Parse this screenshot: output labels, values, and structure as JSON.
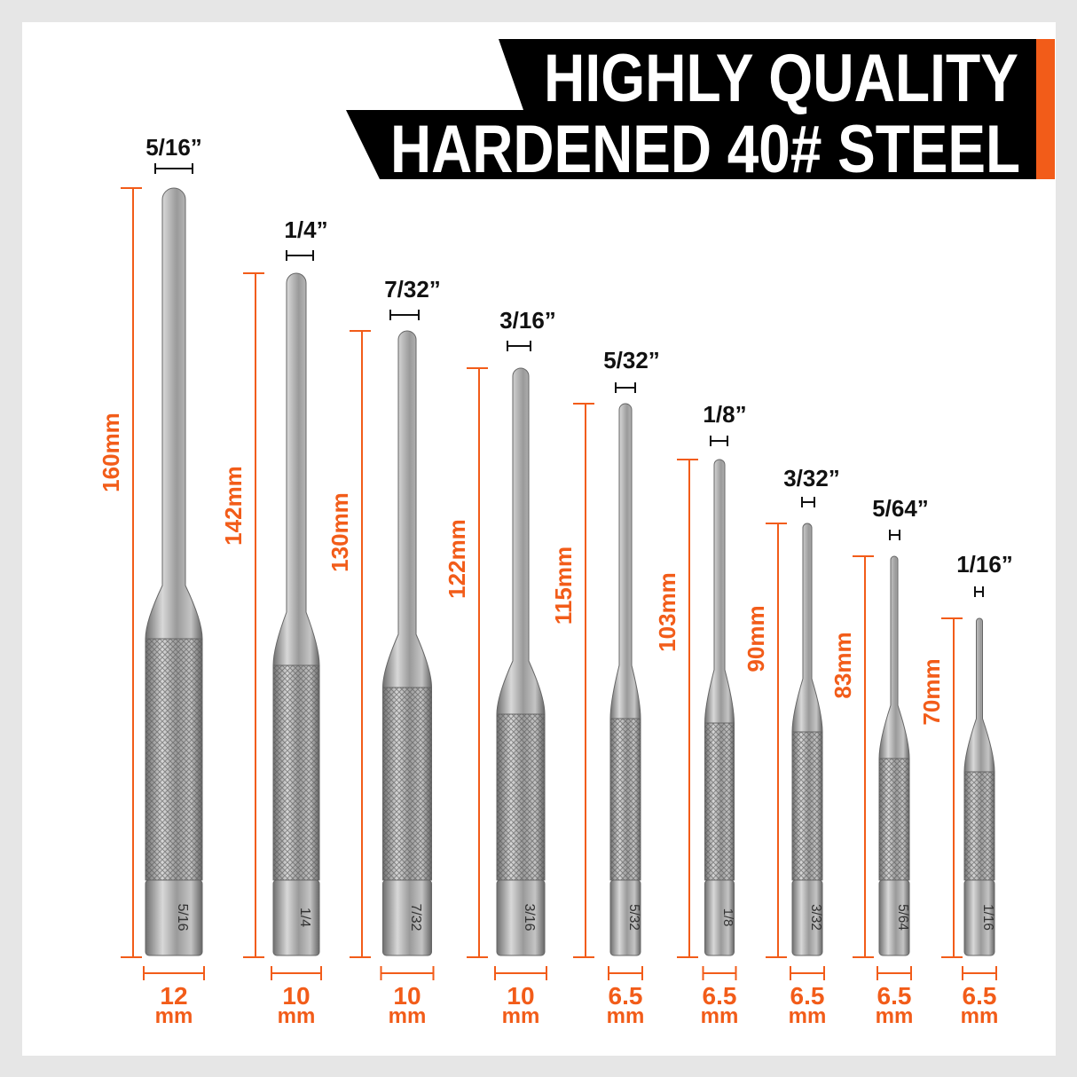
{
  "banner": {
    "line1": "HIGHLY QUALITY",
    "line2": "HARDENED 40# STEEL",
    "background_color": "#000000",
    "accent_color": "#f25c19"
  },
  "colors": {
    "dimension": "#f25c19",
    "steel": "#a9a9a9",
    "text_dark": "#111111"
  },
  "pins": [
    {
      "tip_size": "5/16”",
      "length": "160mm",
      "diameter": "12",
      "unit": "mm",
      "stamp": "5/16"
    },
    {
      "tip_size": "1/4”",
      "length": "142mm",
      "diameter": "10",
      "unit": "mm",
      "stamp": "1/4"
    },
    {
      "tip_size": "7/32”",
      "length": "130mm",
      "diameter": "10",
      "unit": "mm",
      "stamp": "7/32"
    },
    {
      "tip_size": "3/16”",
      "length": "122mm",
      "diameter": "10",
      "unit": "mm",
      "stamp": "3/16"
    },
    {
      "tip_size": "5/32”",
      "length": "115mm",
      "diameter": "6.5",
      "unit": "mm",
      "stamp": "5/32"
    },
    {
      "tip_size": "1/8”",
      "length": "103mm",
      "diameter": "6.5",
      "unit": "mm",
      "stamp": "1/8"
    },
    {
      "tip_size": "3/32”",
      "length": "90mm",
      "diameter": "6.5",
      "unit": "mm",
      "stamp": "3/32"
    },
    {
      "tip_size": "5/64”",
      "length": "83mm",
      "diameter": "6.5",
      "unit": "mm",
      "stamp": "5/64"
    },
    {
      "tip_size": "1/16”",
      "length": "70mm",
      "diameter": "6.5",
      "unit": "mm",
      "stamp": "1/16"
    }
  ]
}
